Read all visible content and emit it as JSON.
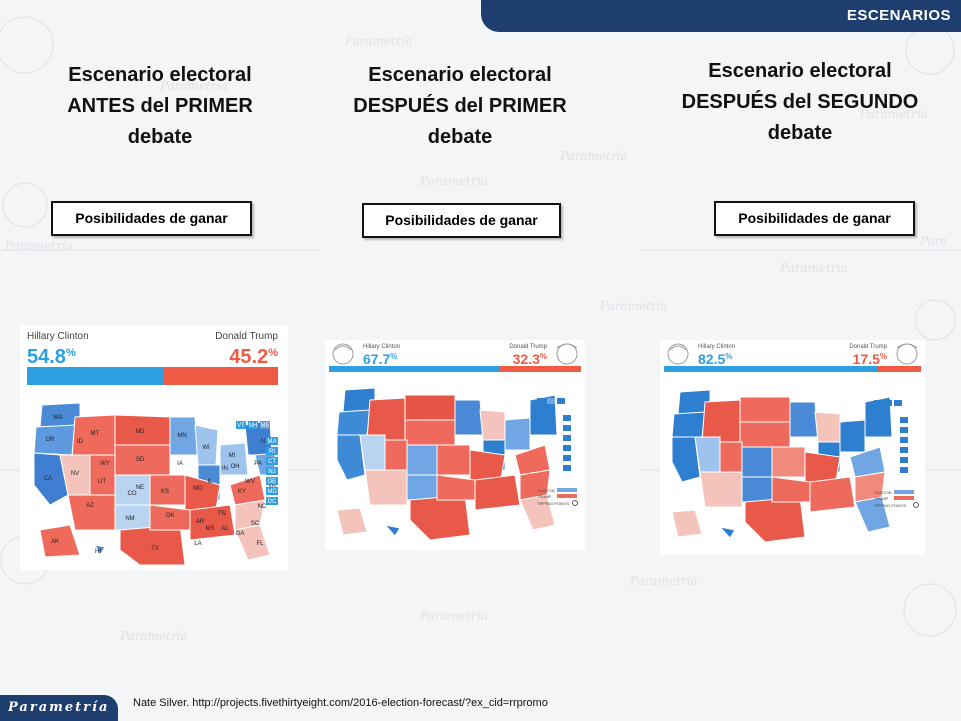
{
  "header": {
    "section": "ESCENARIOS"
  },
  "columns": [
    {
      "title_lines": [
        "Escenario electoral",
        "ANTES del PRIMER",
        "debate"
      ],
      "button": "Posibilidades de ganar"
    },
    {
      "title_lines": [
        "Escenario electoral",
        "DESPUÉS del PRIMER",
        "debate"
      ],
      "button": "Posibilidades de ganar"
    },
    {
      "title_lines": [
        "Escenario electoral",
        "DESPUÉS del SEGUNDO",
        "debate"
      ],
      "button": "Posibilidades de ganar"
    }
  ],
  "maps": [
    {
      "clinton_label": "Hillary Clinton",
      "trump_label": "Donald Trump",
      "clinton_value": "54.8",
      "trump_value": "45.2",
      "unit": "%",
      "state_labels": [
        "WA",
        "OR",
        "MT",
        "ND",
        "MN",
        "ID",
        "SD",
        "WI",
        "MI",
        "WY",
        "NE",
        "IA",
        "NV",
        "UT",
        "CO",
        "KS",
        "MO",
        "IL",
        "IN",
        "OH",
        "PA",
        "NY",
        "CA",
        "AZ",
        "NM",
        "OK",
        "AR",
        "TN",
        "KY",
        "WV",
        "VA",
        "NC",
        "SC",
        "TX",
        "LA",
        "MS",
        "AL",
        "GA",
        "FL",
        "AK",
        "HI",
        "VT",
        "NH",
        "ME",
        "MA",
        "RI",
        "CT",
        "NJ",
        "DE",
        "MD",
        "DC"
      ]
    },
    {
      "clinton_label": "Hillary Clinton",
      "trump_label": "Donald Trump",
      "clinton_value": "67.7",
      "trump_value": "32.3",
      "unit": "%",
      "legend": [
        "CLINTON",
        "TRUMP",
        "TIPPING POINTS"
      ]
    },
    {
      "clinton_label": "Hillary Clinton",
      "trump_label": "Donald Trump",
      "clinton_value": "82.5",
      "trump_value": "17.5",
      "unit": "%",
      "legend": [
        "CLINTON",
        "TRUMP",
        "TIPPING POINTS"
      ]
    }
  ],
  "colors": {
    "clinton": "#2e9fe0",
    "trump": "#ef5a45",
    "navy": "#1d3e6e"
  },
  "footer": {
    "source": "Nate Silver. http://projects.fivethirtyeight.com/2016-election-forecast/?ex_cid=rrpromo"
  },
  "brand": {
    "logo": "Parametría"
  }
}
